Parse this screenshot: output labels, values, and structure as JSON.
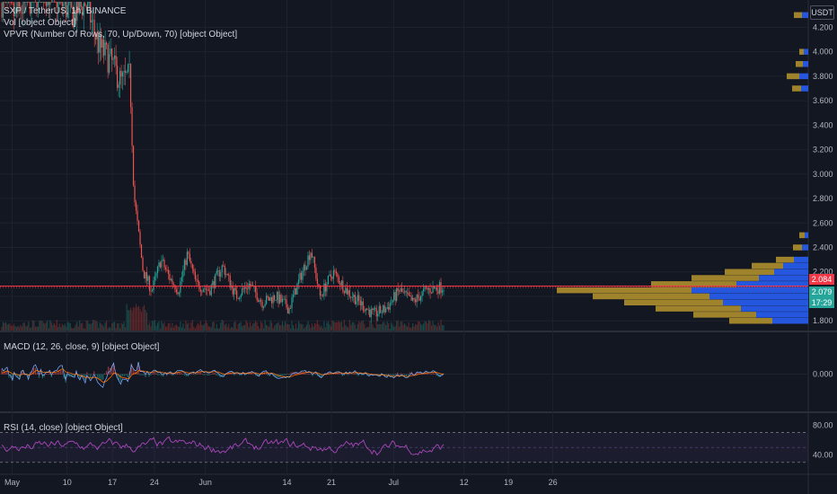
{
  "price_pane": {
    "legend": {
      "symbol_line": "SXP / TetherUS, 1h, BINANCE",
      "vol_line": "Vol [object Object]",
      "vpvr_line": "VPVR (Number Of Rows, 70, Up/Down, 70) [object Object]"
    },
    "currency": "USDT",
    "tags": {
      "last_price": "2.084",
      "current_price": "2.079",
      "countdown": "17:29"
    },
    "colors": {
      "last_price": "#f23645",
      "current_price": "#26a69a",
      "countdown": "#26a69a",
      "vp_up": "#2962ff",
      "vp_down": "#b8962e"
    }
  },
  "macd_pane": {
    "legend": "MACD (12, 26, close, 9) [object Object]"
  },
  "rsi_pane": {
    "legend": "RSI (14, close) [object Object]"
  },
  "chart_data": [
    {
      "type": "candlestick",
      "title": "SXP / TetherUS, 1h, BINANCE",
      "y_ticks": [
        "4.200",
        "4.000",
        "3.800",
        "3.600",
        "3.400",
        "3.200",
        "3.000",
        "2.800",
        "2.600",
        "2.400",
        "2.200",
        "2.000",
        "1.800"
      ],
      "ylim": [
        1.75,
        4.35
      ],
      "last_price": 2.084,
      "current_price": 2.079,
      "path_points": [
        [
          0.0,
          4.4
        ],
        [
          0.03,
          4.3
        ],
        [
          0.06,
          4.4
        ],
        [
          0.09,
          4.5
        ],
        [
          0.12,
          4.45
        ],
        [
          0.16,
          4.3
        ],
        [
          0.19,
          4.4
        ],
        [
          0.22,
          4.05
        ],
        [
          0.25,
          3.9
        ],
        [
          0.27,
          3.75
        ],
        [
          0.29,
          3.8
        ],
        [
          0.3,
          2.8
        ],
        [
          0.31,
          2.5
        ],
        [
          0.32,
          2.2
        ],
        [
          0.34,
          2.05
        ],
        [
          0.36,
          2.3
        ],
        [
          0.38,
          2.15
        ],
        [
          0.4,
          2.05
        ],
        [
          0.42,
          2.35
        ],
        [
          0.44,
          2.1
        ],
        [
          0.47,
          2.05
        ],
        [
          0.5,
          2.25
        ],
        [
          0.53,
          2.0
        ],
        [
          0.56,
          2.1
        ],
        [
          0.59,
          1.95
        ],
        [
          0.62,
          2.0
        ],
        [
          0.65,
          1.9
        ],
        [
          0.68,
          2.2
        ],
        [
          0.7,
          2.38
        ],
        [
          0.72,
          2.0
        ],
        [
          0.75,
          2.2
        ],
        [
          0.78,
          2.05
        ],
        [
          0.81,
          1.95
        ],
        [
          0.84,
          1.85
        ],
        [
          0.87,
          1.9
        ],
        [
          0.9,
          2.05
        ],
        [
          0.93,
          1.95
        ],
        [
          0.96,
          2.05
        ],
        [
          1.0,
          2.08
        ]
      ],
      "volume_profile": [
        {
          "price": 1.8,
          "down": 48,
          "up": 40
        },
        {
          "price": 1.85,
          "down": 70,
          "up": 58
        },
        {
          "price": 1.9,
          "down": 95,
          "up": 75
        },
        {
          "price": 1.95,
          "down": 110,
          "up": 95
        },
        {
          "price": 2.0,
          "down": 130,
          "up": 110
        },
        {
          "price": 2.05,
          "down": 150,
          "up": 130
        },
        {
          "price": 2.1,
          "down": 95,
          "up": 80
        },
        {
          "price": 2.15,
          "down": 75,
          "up": 55
        },
        {
          "price": 2.2,
          "down": 55,
          "up": 38
        },
        {
          "price": 2.25,
          "down": 35,
          "up": 28
        },
        {
          "price": 2.3,
          "down": 20,
          "up": 16
        },
        {
          "price": 2.4,
          "down": 10,
          "up": 7
        },
        {
          "price": 2.5,
          "down": 6,
          "up": 4
        },
        {
          "price": 3.7,
          "down": 10,
          "up": 8
        },
        {
          "price": 3.8,
          "down": 14,
          "up": 10
        },
        {
          "price": 3.9,
          "down": 8,
          "up": 6
        },
        {
          "price": 4.0,
          "down": 5,
          "up": 5
        },
        {
          "price": 4.3,
          "down": 9,
          "up": 7
        }
      ]
    },
    {
      "type": "line",
      "title": "MACD (12, 26, close, 9) [object Object]",
      "y_ticks": [
        "0.000"
      ],
      "ylim": [
        -0.1,
        0.1
      ]
    },
    {
      "type": "line",
      "title": "RSI (14, close) [object Object]",
      "y_ticks": [
        "80.00",
        "40.00"
      ],
      "ylim": [
        20,
        90
      ],
      "bands": [
        70,
        30
      ]
    }
  ],
  "x_axis": {
    "ticks": [
      {
        "label": "May",
        "pos": 0.015
      },
      {
        "label": "10",
        "pos": 0.083
      },
      {
        "label": "17",
        "pos": 0.139
      },
      {
        "label": "24",
        "pos": 0.191
      },
      {
        "label": "Jun",
        "pos": 0.254
      },
      {
        "label": "14",
        "pos": 0.355
      },
      {
        "label": "21",
        "pos": 0.41
      },
      {
        "label": "Jul",
        "pos": 0.487
      },
      {
        "label": "12",
        "pos": 0.574
      },
      {
        "label": "19",
        "pos": 0.629
      },
      {
        "label": "26",
        "pos": 0.684
      }
    ]
  }
}
